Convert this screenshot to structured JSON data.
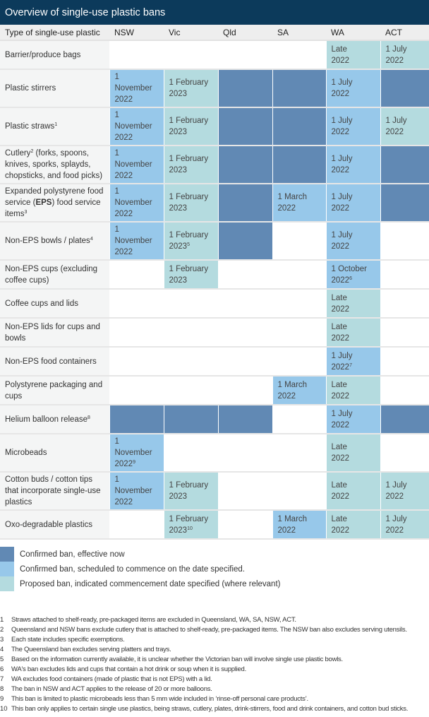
{
  "title": "Overview of single-use plastic bans",
  "headers": [
    "Type of single-use  plastic",
    "NSW",
    "Vic",
    "Qld",
    "SA",
    "WA",
    "ACT"
  ],
  "colors": {
    "title_bg": "#0c3a5b",
    "effective": "#6189b4",
    "confirmed": "#97c8ea",
    "proposed": "#b4dbdf"
  },
  "rows": [
    {
      "label": [
        {
          "t": "Barrier/produce bags"
        }
      ],
      "cells": [
        null,
        null,
        null,
        null,
        {
          "k": "p",
          "v": [
            "Late",
            "2022"
          ]
        },
        {
          "k": "p",
          "v": [
            "1 July",
            "2022"
          ]
        }
      ]
    },
    {
      "label": [
        {
          "t": "Plastic stirrers"
        }
      ],
      "cells": [
        {
          "k": "c",
          "v": [
            "1 November",
            "2022"
          ]
        },
        {
          "k": "p",
          "v": [
            "1 February",
            "2023"
          ]
        },
        {
          "k": "d"
        },
        {
          "k": "d"
        },
        {
          "k": "c",
          "v": [
            "1 July",
            "2022"
          ]
        },
        {
          "k": "d"
        }
      ]
    },
    {
      "label": [
        {
          "t": "Plastic straws"
        },
        {
          "s": "1"
        }
      ],
      "cells": [
        {
          "k": "c",
          "v": [
            "1 November",
            "2022"
          ]
        },
        {
          "k": "p",
          "v": [
            "1 February",
            "2023"
          ]
        },
        {
          "k": "d"
        },
        {
          "k": "d"
        },
        {
          "k": "c",
          "v": [
            "1 July",
            "2022"
          ]
        },
        {
          "k": "p",
          "v": [
            "1 July",
            "2022"
          ]
        }
      ]
    },
    {
      "label": [
        {
          "t": "Cutlery"
        },
        {
          "s": "2"
        },
        {
          "t": " (forks, spoons, knives, sporks, splayds, chopsticks, and food picks)"
        }
      ],
      "cells": [
        {
          "k": "c",
          "v": [
            "1 November",
            "2022"
          ]
        },
        {
          "k": "p",
          "v": [
            "1 February",
            "2023"
          ]
        },
        {
          "k": "d"
        },
        {
          "k": "d"
        },
        {
          "k": "c",
          "v": [
            "1 July",
            "2022"
          ]
        },
        {
          "k": "d"
        }
      ]
    },
    {
      "label": [
        {
          "t": "Expanded polystyrene food service ("
        },
        {
          "b": "EPS"
        },
        {
          "t": ") food service items"
        },
        {
          "s": "3"
        }
      ],
      "cells": [
        {
          "k": "c",
          "v": [
            "1 November",
            "2022"
          ]
        },
        {
          "k": "p",
          "v": [
            "1 February",
            "2023"
          ]
        },
        {
          "k": "d"
        },
        {
          "k": "c",
          "v": [
            "1 March",
            "2022"
          ]
        },
        {
          "k": "c",
          "v": [
            "1 July",
            "2022"
          ]
        },
        {
          "k": "d"
        }
      ]
    },
    {
      "label": [
        {
          "t": "Non-EPS bowls / plates"
        },
        {
          "s": "4"
        }
      ],
      "cells": [
        {
          "k": "c",
          "v": [
            "1 November",
            "2022"
          ]
        },
        {
          "k": "p",
          "v": [
            "1 February",
            "2023"
          ],
          "s": "5"
        },
        {
          "k": "d"
        },
        null,
        {
          "k": "c",
          "v": [
            "1 July",
            "2022"
          ]
        },
        null
      ]
    },
    {
      "label": [
        {
          "t": "Non-EPS cups (excluding coffee cups)"
        }
      ],
      "cells": [
        null,
        {
          "k": "p",
          "v": [
            "1 February",
            "2023"
          ]
        },
        null,
        null,
        {
          "k": "c",
          "v": [
            "1 October",
            "2022"
          ],
          "s": "6"
        },
        null
      ]
    },
    {
      "label": [
        {
          "t": "Coffee cups and lids"
        }
      ],
      "cells": [
        null,
        null,
        null,
        null,
        {
          "k": "p",
          "v": [
            "Late",
            "2022"
          ]
        },
        null
      ]
    },
    {
      "label": [
        {
          "t": "Non-EPS lids for cups and bowls"
        }
      ],
      "cells": [
        null,
        null,
        null,
        null,
        {
          "k": "p",
          "v": [
            "Late",
            "2022"
          ]
        },
        null
      ]
    },
    {
      "label": [
        {
          "t": "Non-EPS food containers"
        }
      ],
      "cells": [
        null,
        null,
        null,
        null,
        {
          "k": "c",
          "v": [
            "1 July",
            "2022"
          ],
          "s": "7"
        },
        null
      ]
    },
    {
      "label": [
        {
          "t": "Polystyrene packaging and cups"
        }
      ],
      "cells": [
        null,
        null,
        null,
        {
          "k": "c",
          "v": [
            "1 March",
            "2022"
          ]
        },
        {
          "k": "p",
          "v": [
            "Late",
            "2022"
          ]
        },
        null
      ]
    },
    {
      "label": [
        {
          "t": "Helium balloon release"
        },
        {
          "s": "8"
        }
      ],
      "cells": [
        {
          "k": "d"
        },
        {
          "k": "d"
        },
        {
          "k": "d"
        },
        null,
        {
          "k": "c",
          "v": [
            "1 July",
            "2022"
          ]
        },
        {
          "k": "d"
        }
      ]
    },
    {
      "label": [
        {
          "t": "Microbeads"
        }
      ],
      "cells": [
        {
          "k": "c",
          "v": [
            "1 November",
            "2022"
          ],
          "s": "9"
        },
        null,
        null,
        null,
        {
          "k": "p",
          "v": [
            "Late",
            "2022"
          ]
        },
        null
      ]
    },
    {
      "label": [
        {
          "t": "Cotton buds / cotton tips that incorporate single-use plastics"
        }
      ],
      "cells": [
        {
          "k": "c",
          "v": [
            "1 November",
            "2022"
          ]
        },
        {
          "k": "p",
          "v": [
            "1 February",
            "2023"
          ]
        },
        null,
        null,
        {
          "k": "p",
          "v": [
            "Late",
            "2022"
          ]
        },
        {
          "k": "p",
          "v": [
            "1 July",
            "2022"
          ]
        }
      ]
    },
    {
      "label": [
        {
          "t": "Oxo-degradable plastics"
        }
      ],
      "cells": [
        null,
        {
          "k": "p",
          "v": [
            "1 February",
            "2023"
          ],
          "s": "10"
        },
        null,
        {
          "k": "c",
          "v": [
            "1 March",
            "2022"
          ]
        },
        {
          "k": "p",
          "v": [
            "Late",
            "2022"
          ]
        },
        {
          "k": "p",
          "v": [
            "1 July",
            "2022"
          ]
        }
      ]
    }
  ],
  "legend": [
    {
      "k": "d",
      "label": "Confirmed ban, effective now"
    },
    {
      "k": "c",
      "label": "Confirmed ban, scheduled to commence on the date specified."
    },
    {
      "k": "p",
      "label": "Proposed ban, indicated commencement date specified (where relevant)"
    }
  ],
  "footnotes": [
    {
      "n": "1",
      "t": "Straws attached to shelf-ready, pre-packaged items are excluded in Queensland, WA, SA, NSW, ACT."
    },
    {
      "n": "2",
      "t": "Queensland and NSW bans exclude cutlery that is attached to shelf-ready, pre-packaged items. The NSW ban also excludes serving utensils."
    },
    {
      "n": "3",
      "t": "Each state includes specific exemptions."
    },
    {
      "n": "4",
      "t": "The Queensland ban excludes serving platters and trays."
    },
    {
      "n": "5",
      "t": "Based on the information currently available, it is unclear whether the Victorian ban will involve single use plastic bowls."
    },
    {
      "n": "6",
      "t": "WA's ban excludes lids and cups that contain a hot drink or soup when it is supplied."
    },
    {
      "n": "7",
      "t": "WA excludes food containers (made of plastic that is not EPS) with a lid."
    },
    {
      "n": "8",
      "t": "The ban in NSW and ACT applies to the release of 20 or more balloons."
    },
    {
      "n": "9",
      "t": "This ban is limited to plastic microbeads less than 5 mm wide included in ‘rinse-off personal care products’."
    },
    {
      "n": "10",
      "t": "This ban only applies to certain single use plastics, being straws, cutlery, plates, drink-stirrers, food and drink containers, and cotton bud sticks."
    }
  ]
}
